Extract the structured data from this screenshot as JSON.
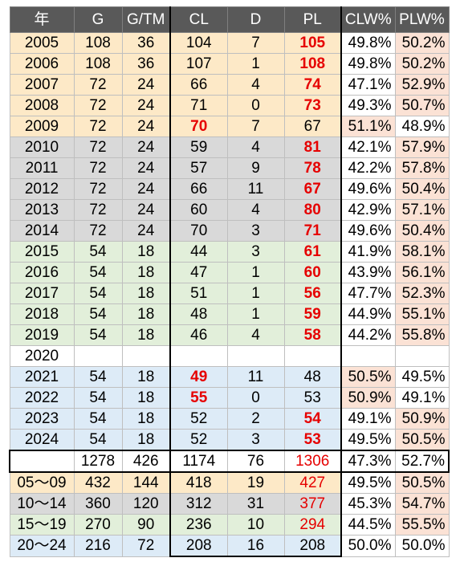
{
  "headers": [
    "年",
    "G",
    "G/TM",
    "CL",
    "D",
    "PL",
    "CLW%",
    "PLW%"
  ],
  "rows": [
    {
      "y": "2005",
      "g": "108",
      "gtm": "36",
      "cl": "104",
      "d": "7",
      "pl": "105",
      "clw": "49.8%",
      "plw": "50.2%"
    },
    {
      "y": "2006",
      "g": "108",
      "gtm": "36",
      "cl": "107",
      "d": "1",
      "pl": "108",
      "clw": "49.8%",
      "plw": "50.2%"
    },
    {
      "y": "2007",
      "g": "72",
      "gtm": "24",
      "cl": "66",
      "d": "4",
      "pl": "74",
      "clw": "47.1%",
      "plw": "52.9%"
    },
    {
      "y": "2008",
      "g": "72",
      "gtm": "24",
      "cl": "71",
      "d": "0",
      "pl": "73",
      "clw": "49.3%",
      "plw": "50.7%"
    },
    {
      "y": "2009",
      "g": "72",
      "gtm": "24",
      "cl": "70",
      "d": "7",
      "pl": "67",
      "clw": "51.1%",
      "plw": "48.9%"
    },
    {
      "y": "2010",
      "g": "72",
      "gtm": "24",
      "cl": "59",
      "d": "4",
      "pl": "81",
      "clw": "42.1%",
      "plw": "57.9%"
    },
    {
      "y": "2011",
      "g": "72",
      "gtm": "24",
      "cl": "57",
      "d": "9",
      "pl": "78",
      "clw": "42.2%",
      "plw": "57.8%"
    },
    {
      "y": "2012",
      "g": "72",
      "gtm": "24",
      "cl": "66",
      "d": "11",
      "pl": "67",
      "clw": "49.6%",
      "plw": "50.4%"
    },
    {
      "y": "2013",
      "g": "72",
      "gtm": "24",
      "cl": "60",
      "d": "4",
      "pl": "80",
      "clw": "42.9%",
      "plw": "57.1%"
    },
    {
      "y": "2014",
      "g": "72",
      "gtm": "24",
      "cl": "70",
      "d": "3",
      "pl": "71",
      "clw": "49.6%",
      "plw": "50.4%"
    },
    {
      "y": "2015",
      "g": "54",
      "gtm": "18",
      "cl": "44",
      "d": "3",
      "pl": "61",
      "clw": "41.9%",
      "plw": "58.1%"
    },
    {
      "y": "2016",
      "g": "54",
      "gtm": "18",
      "cl": "47",
      "d": "1",
      "pl": "60",
      "clw": "43.9%",
      "plw": "56.1%"
    },
    {
      "y": "2017",
      "g": "54",
      "gtm": "18",
      "cl": "51",
      "d": "1",
      "pl": "56",
      "clw": "47.7%",
      "plw": "52.3%"
    },
    {
      "y": "2018",
      "g": "54",
      "gtm": "18",
      "cl": "48",
      "d": "1",
      "pl": "59",
      "clw": "44.9%",
      "plw": "55.1%"
    },
    {
      "y": "2019",
      "g": "54",
      "gtm": "18",
      "cl": "46",
      "d": "4",
      "pl": "58",
      "clw": "44.2%",
      "plw": "55.8%"
    },
    {
      "y": "2020",
      "g": "",
      "gtm": "",
      "cl": "",
      "d": "",
      "pl": "",
      "clw": "",
      "plw": ""
    },
    {
      "y": "2021",
      "g": "54",
      "gtm": "18",
      "cl": "49",
      "d": "11",
      "pl": "48",
      "clw": "50.5%",
      "plw": "49.5%"
    },
    {
      "y": "2022",
      "g": "54",
      "gtm": "18",
      "cl": "55",
      "d": "0",
      "pl": "53",
      "clw": "50.9%",
      "plw": "49.1%"
    },
    {
      "y": "2023",
      "g": "54",
      "gtm": "18",
      "cl": "52",
      "d": "2",
      "pl": "54",
      "clw": "49.1%",
      "plw": "50.9%"
    },
    {
      "y": "2024",
      "g": "54",
      "gtm": "18",
      "cl": "52",
      "d": "3",
      "pl": "53",
      "clw": "49.5%",
      "plw": "50.5%"
    }
  ],
  "total": {
    "y": "",
    "g": "1278",
    "gtm": "426",
    "cl": "1174",
    "d": "76",
    "pl": "1306",
    "clw": "47.3%",
    "plw": "52.7%"
  },
  "periods": [
    {
      "y": "05～09",
      "g": "432",
      "gtm": "144",
      "cl": "418",
      "d": "19",
      "pl": "427",
      "clw": "49.5%",
      "plw": "50.5%"
    },
    {
      "y": "10～14",
      "g": "360",
      "gtm": "120",
      "cl": "312",
      "d": "31",
      "pl": "377",
      "clw": "45.3%",
      "plw": "54.7%"
    },
    {
      "y": "15～19",
      "g": "270",
      "gtm": "90",
      "cl": "236",
      "d": "10",
      "pl": "294",
      "clw": "44.5%",
      "plw": "55.5%"
    },
    {
      "y": "20～24",
      "g": "216",
      "gtm": "72",
      "cl": "208",
      "d": "16",
      "pl": "208",
      "clw": "50.0%",
      "plw": "50.0%"
    }
  ],
  "colors": {
    "header_bg": "#595959",
    "era_2005_2009": "#fde9c7",
    "era_2010_2014": "#d9d9d9",
    "era_2015_2019": "#e2efda",
    "era_2021_2024": "#ddebf7",
    "winner_highlight": "#fbe2d5",
    "winner_text": "#e60000"
  }
}
